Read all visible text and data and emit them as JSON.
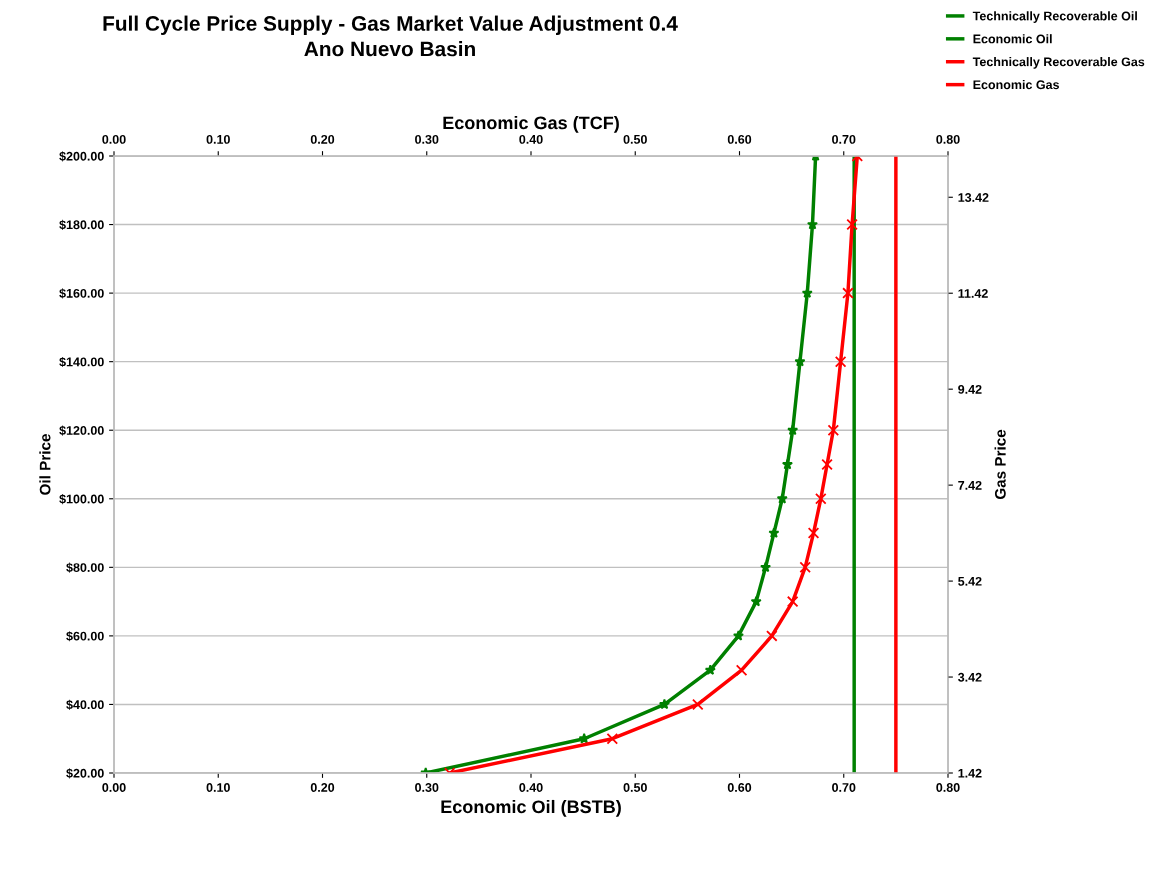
{
  "chart_data": {
    "type": "line",
    "title": "Full Cycle Price Supply - Gas Market Value Adjustment 0.4\nAno Nuevo Basin",
    "xlabel": "Economic Oil (BSTB)",
    "x2label": "Economic Gas (TCF)",
    "ylabel": "Oil Price",
    "y2label": "Gas Price",
    "xlim": [
      0,
      0.8
    ],
    "xticks": [
      {
        "value": 0,
        "label": "0.00"
      },
      {
        "value": 0.1,
        "label": "0.10"
      },
      {
        "value": 0.2,
        "label": "0.20"
      },
      {
        "value": 0.3,
        "label": "0.30"
      },
      {
        "value": 0.4,
        "label": "0.40"
      },
      {
        "value": 0.5,
        "label": "0.50"
      },
      {
        "value": 0.6,
        "label": "0.60"
      },
      {
        "value": 0.7,
        "label": "0.70"
      },
      {
        "value": 0.8,
        "label": "0.80"
      }
    ],
    "x2lim": [
      0,
      0.8
    ],
    "x2ticks": [
      {
        "value": 0,
        "label": "0.00"
      },
      {
        "value": 0.1,
        "label": "0.10"
      },
      {
        "value": 0.2,
        "label": "0.20"
      },
      {
        "value": 0.3,
        "label": "0.30"
      },
      {
        "value": 0.4,
        "label": "0.40"
      },
      {
        "value": 0.5,
        "label": "0.50"
      },
      {
        "value": 0.6,
        "label": "0.60"
      },
      {
        "value": 0.7,
        "label": "0.70"
      },
      {
        "value": 0.8,
        "label": "0.80"
      }
    ],
    "ylim": [
      20,
      200
    ],
    "yticks": [
      {
        "value": 20,
        "label": "$20.00"
      },
      {
        "value": 40,
        "label": "$40.00"
      },
      {
        "value": 60,
        "label": "$60.00"
      },
      {
        "value": 80,
        "label": "$80.00"
      },
      {
        "value": 100,
        "label": "$100.00"
      },
      {
        "value": 120,
        "label": "$120.00"
      },
      {
        "value": 140,
        "label": "$140.00"
      },
      {
        "value": 160,
        "label": "$160.00"
      },
      {
        "value": 180,
        "label": "$180.00"
      },
      {
        "value": 200,
        "label": "$200.00"
      }
    ],
    "y2lim": [
      1.42,
      14.28
    ],
    "y2ticks": [
      1.42,
      3.42,
      5.42,
      7.42,
      9.42,
      11.42,
      13.42
    ],
    "grid": "y",
    "legend": "top right",
    "series": [
      {
        "name": "Technically Recoverable Oil",
        "color": "#008000",
        "marker": "none",
        "x": [
          0.71,
          0.71
        ],
        "values": [
          20,
          200
        ]
      },
      {
        "name": "Economic Oil",
        "color": "#008000",
        "marker": "star",
        "x": [
          0.299,
          0.451,
          0.528,
          0.572,
          0.599,
          0.616,
          0.625,
          0.633,
          0.641,
          0.646,
          0.651,
          0.658,
          0.665,
          0.67,
          0.673
        ],
        "values": [
          20,
          30,
          40,
          50,
          60,
          70,
          80,
          90,
          100,
          110,
          120,
          140,
          160,
          180,
          200
        ]
      },
      {
        "name": "Technically Recoverable Gas",
        "color": "#ff0000",
        "marker": "none",
        "axis": "x2",
        "x": [
          0.75,
          0.75
        ],
        "values": [
          20,
          200
        ]
      },
      {
        "name": "Economic Gas",
        "color": "#ff0000",
        "marker": "cross",
        "axis": "x2",
        "x": [
          0.322,
          0.478,
          0.56,
          0.602,
          0.631,
          0.651,
          0.663,
          0.671,
          0.678,
          0.684,
          0.69,
          0.697,
          0.704,
          0.708,
          0.713
        ],
        "values": [
          20,
          30,
          40,
          50,
          60,
          70,
          80,
          90,
          100,
          110,
          120,
          140,
          160,
          180,
          200
        ]
      }
    ]
  }
}
